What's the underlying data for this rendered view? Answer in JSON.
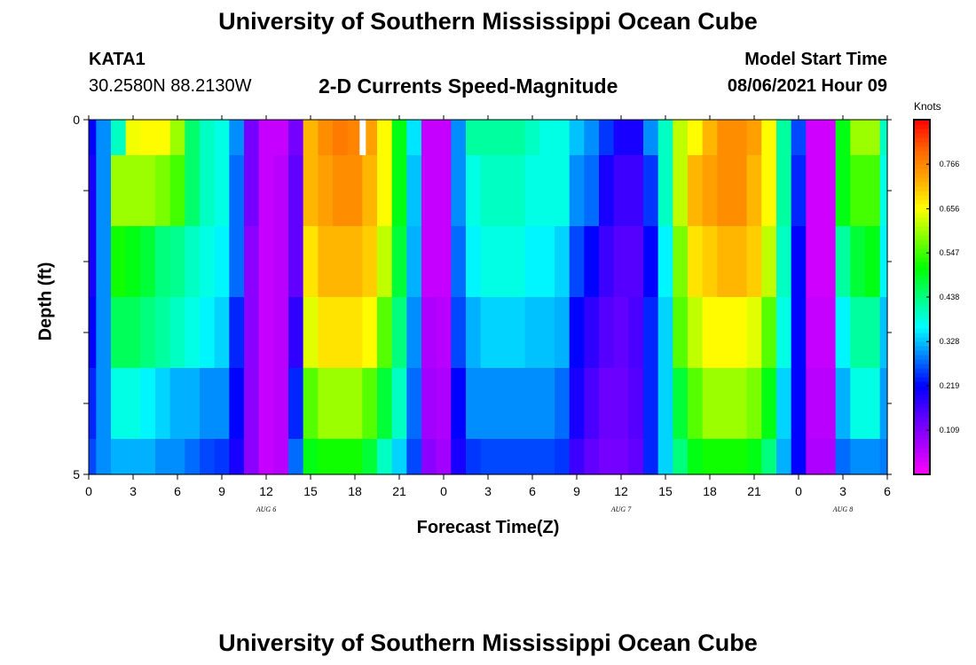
{
  "header": {
    "title_top": "University of Southern Mississippi Ocean Cube",
    "station": "KATA1",
    "coordinates": "30.2580N  88.2130W",
    "plot_title": "2-D Currents Speed-Magnitude",
    "model_label": "Model Start Time",
    "model_time": "08/06/2021 Hour 09",
    "title_bottom": "University of Southern Mississippi Ocean Cube"
  },
  "colors": {
    "palette": [
      "#ff00ff",
      "#aa00ff",
      "#5a00ff",
      "#0000ff",
      "#0080ff",
      "#00ffff",
      "#00ff80",
      "#00ff00",
      "#80ff00",
      "#ffff00",
      "#ffaa00",
      "#ff6400",
      "#ff0000"
    ]
  },
  "chart_data": {
    "type": "heatmap",
    "title": "2-D Currents Speed-Magnitude",
    "xlabel": "Forecast Time(Z)",
    "ylabel": "Depth (ft)",
    "ylim": [
      0,
      5
    ],
    "y_ticks": [
      "0",
      "5"
    ],
    "x_ticks": [
      "0",
      "3",
      "6",
      "9",
      "12",
      "15",
      "18",
      "21",
      "0",
      "3",
      "6",
      "9",
      "12",
      "15",
      "18",
      "21",
      "0",
      "3",
      "6"
    ],
    "date_labels": [
      {
        "text": "AUG 6",
        "hour": 12
      },
      {
        "text": "AUG 7",
        "hour": 36
      },
      {
        "text": "AUG 8",
        "hour": 51
      }
    ],
    "x_range_hours": [
      0,
      54
    ],
    "colorbar": {
      "unit": "Knots",
      "range": [
        0,
        0.876
      ],
      "ticks": [
        0.109,
        0.219,
        0.328,
        0.438,
        0.547,
        0.656,
        0.766
      ],
      "tick_labels": [
        "0.109",
        "0.219",
        "0.328",
        "0.438",
        "0.547",
        "0.656",
        "0.766"
      ]
    },
    "depth_layers": [
      0.5,
      1.5,
      2.5,
      3.5,
      4.5,
      5.0
    ],
    "hours": [
      0,
      1,
      2,
      3,
      4,
      5,
      6,
      7,
      8,
      9,
      10,
      11,
      12,
      13,
      14,
      15,
      16,
      17,
      18,
      19,
      20,
      21,
      22,
      23,
      24,
      25,
      26,
      27,
      28,
      29,
      30,
      31,
      32,
      33,
      34,
      35,
      36,
      37,
      38,
      39,
      40,
      41,
      42,
      43,
      44,
      45,
      46,
      47,
      48,
      49,
      50,
      51,
      52,
      53,
      54
    ],
    "speeds": [
      [
        0.22,
        0.3,
        0.4,
        0.65,
        0.66,
        0.66,
        0.6,
        0.45,
        0.4,
        0.38,
        0.3,
        0.12,
        0.05,
        0.05,
        0.12,
        0.72,
        0.76,
        0.78,
        0.77,
        0.74,
        0.66,
        0.5,
        0.35,
        0.05,
        0.05,
        0.3,
        0.42,
        0.42,
        0.42,
        0.42,
        0.4,
        0.38,
        0.38,
        0.33,
        0.3,
        0.25,
        0.2,
        0.2,
        0.3,
        0.4,
        0.62,
        0.66,
        0.72,
        0.76,
        0.76,
        0.74,
        0.66,
        0.42,
        0.26,
        0.04,
        0.04,
        0.5,
        0.6,
        0.6,
        0.4
      ],
      [
        0.2,
        0.3,
        0.6,
        0.6,
        0.6,
        0.58,
        0.55,
        0.45,
        0.4,
        0.38,
        0.28,
        0.12,
        0.05,
        0.06,
        0.14,
        0.72,
        0.74,
        0.76,
        0.76,
        0.72,
        0.66,
        0.5,
        0.33,
        0.05,
        0.05,
        0.3,
        0.38,
        0.4,
        0.4,
        0.4,
        0.38,
        0.38,
        0.38,
        0.3,
        0.28,
        0.2,
        0.17,
        0.17,
        0.25,
        0.4,
        0.62,
        0.72,
        0.74,
        0.76,
        0.76,
        0.72,
        0.66,
        0.42,
        0.24,
        0.04,
        0.04,
        0.5,
        0.55,
        0.55,
        0.38
      ],
      [
        0.2,
        0.3,
        0.52,
        0.5,
        0.48,
        0.44,
        0.43,
        0.4,
        0.38,
        0.36,
        0.28,
        0.1,
        0.05,
        0.06,
        0.14,
        0.68,
        0.72,
        0.72,
        0.72,
        0.7,
        0.62,
        0.48,
        0.32,
        0.05,
        0.05,
        0.28,
        0.36,
        0.38,
        0.38,
        0.38,
        0.36,
        0.36,
        0.34,
        0.26,
        0.22,
        0.17,
        0.15,
        0.15,
        0.22,
        0.36,
        0.58,
        0.68,
        0.7,
        0.72,
        0.72,
        0.7,
        0.62,
        0.4,
        0.22,
        0.04,
        0.04,
        0.42,
        0.48,
        0.5,
        0.36
      ],
      [
        0.22,
        0.3,
        0.46,
        0.46,
        0.44,
        0.42,
        0.4,
        0.38,
        0.36,
        0.34,
        0.24,
        0.1,
        0.05,
        0.06,
        0.18,
        0.64,
        0.68,
        0.68,
        0.68,
        0.66,
        0.56,
        0.44,
        0.3,
        0.07,
        0.06,
        0.26,
        0.32,
        0.34,
        0.34,
        0.34,
        0.33,
        0.33,
        0.32,
        0.22,
        0.18,
        0.15,
        0.14,
        0.16,
        0.24,
        0.34,
        0.56,
        0.62,
        0.66,
        0.66,
        0.66,
        0.64,
        0.56,
        0.38,
        0.22,
        0.05,
        0.05,
        0.36,
        0.42,
        0.42,
        0.33
      ],
      [
        0.24,
        0.3,
        0.38,
        0.38,
        0.36,
        0.34,
        0.32,
        0.32,
        0.3,
        0.3,
        0.22,
        0.1,
        0.05,
        0.06,
        0.24,
        0.56,
        0.6,
        0.6,
        0.6,
        0.56,
        0.48,
        0.4,
        0.28,
        0.08,
        0.07,
        0.22,
        0.3,
        0.3,
        0.3,
        0.3,
        0.3,
        0.3,
        0.28,
        0.2,
        0.16,
        0.13,
        0.13,
        0.15,
        0.24,
        0.34,
        0.48,
        0.56,
        0.6,
        0.6,
        0.6,
        0.58,
        0.5,
        0.34,
        0.22,
        0.06,
        0.06,
        0.32,
        0.38,
        0.38,
        0.31
      ],
      [
        0.26,
        0.3,
        0.32,
        0.32,
        0.32,
        0.3,
        0.3,
        0.28,
        0.26,
        0.25,
        0.2,
        0.1,
        0.05,
        0.06,
        0.28,
        0.5,
        0.52,
        0.52,
        0.52,
        0.48,
        0.4,
        0.34,
        0.26,
        0.1,
        0.08,
        0.2,
        0.25,
        0.26,
        0.26,
        0.26,
        0.26,
        0.26,
        0.25,
        0.17,
        0.14,
        0.12,
        0.12,
        0.14,
        0.24,
        0.34,
        0.44,
        0.5,
        0.52,
        0.52,
        0.52,
        0.5,
        0.44,
        0.32,
        0.22,
        0.07,
        0.07,
        0.28,
        0.3,
        0.3,
        0.29
      ]
    ],
    "missing_marker": {
      "hour": 18.5,
      "depth_from": 0,
      "depth_to": 0.5
    }
  },
  "labels": {
    "depth_axis": "Depth (ft)",
    "time_axis": "Forecast Time(Z)",
    "colorbar_unit": "Knots"
  }
}
